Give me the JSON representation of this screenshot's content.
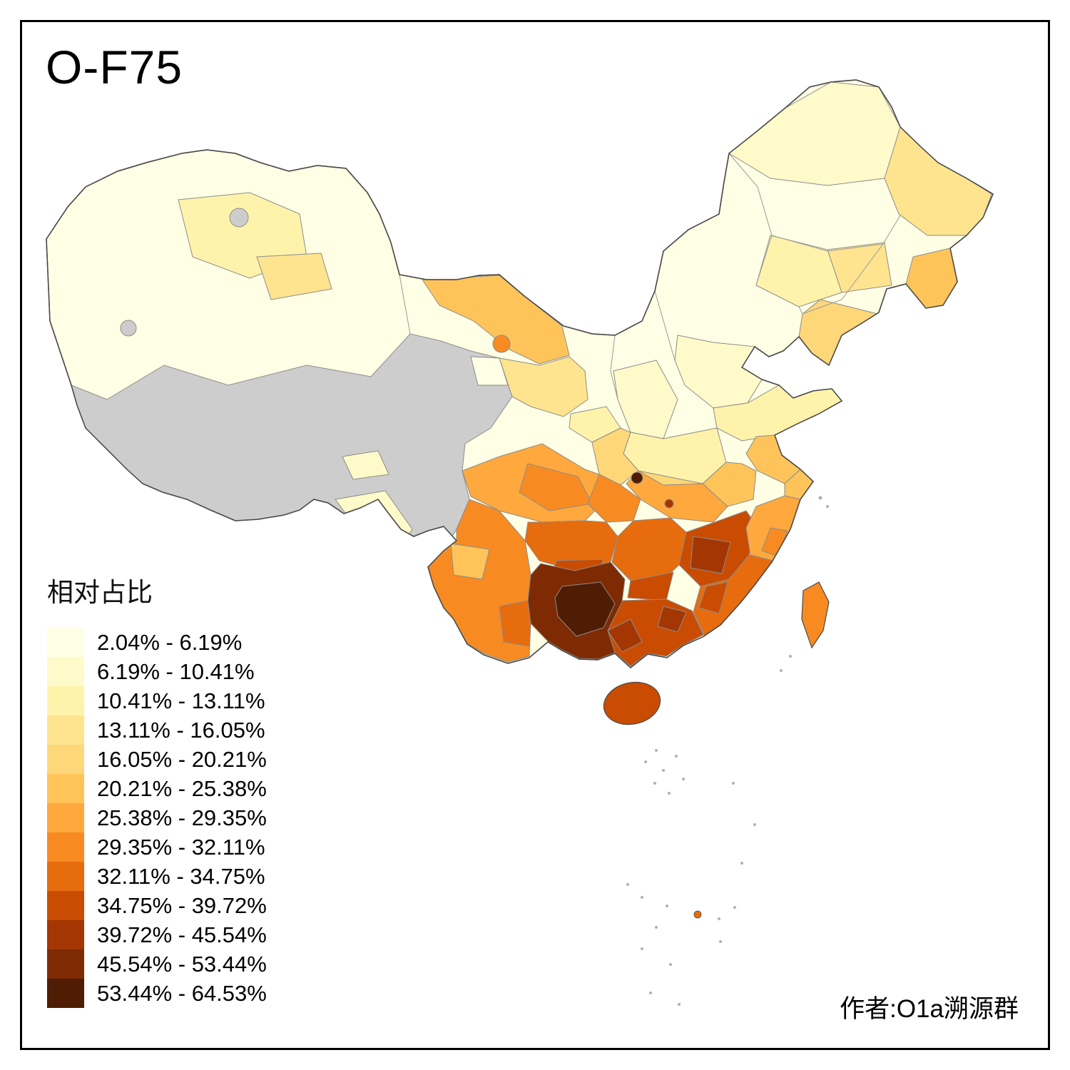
{
  "title": "O-F75",
  "legend": {
    "title": "相对占比",
    "no_data_color": "#CDCDCD",
    "items": [
      {
        "label": "2.04% - 6.19%",
        "color": "#FFFFE5"
      },
      {
        "label": "6.19% - 10.41%",
        "color": "#FFFAC9"
      },
      {
        "label": "10.41% - 13.11%",
        "color": "#FFF3AC"
      },
      {
        "label": "13.11% - 16.05%",
        "color": "#FEE48F"
      },
      {
        "label": "16.05% - 20.21%",
        "color": "#FED778"
      },
      {
        "label": "20.21% - 25.38%",
        "color": "#FEC45A"
      },
      {
        "label": "25.38% - 29.35%",
        "color": "#FEA83E"
      },
      {
        "label": "29.35% - 32.11%",
        "color": "#F78B22"
      },
      {
        "label": "32.11% - 34.75%",
        "color": "#E66C0E"
      },
      {
        "label": "34.75% - 39.72%",
        "color": "#C94C02"
      },
      {
        "label": "39.72% - 45.54%",
        "color": "#A33603"
      },
      {
        "label": "45.54% - 53.44%",
        "color": "#7E2B04"
      },
      {
        "label": "53.44% - 64.53%",
        "color": "#4F1C04"
      }
    ]
  },
  "author": "作者:O1a溯源群"
}
